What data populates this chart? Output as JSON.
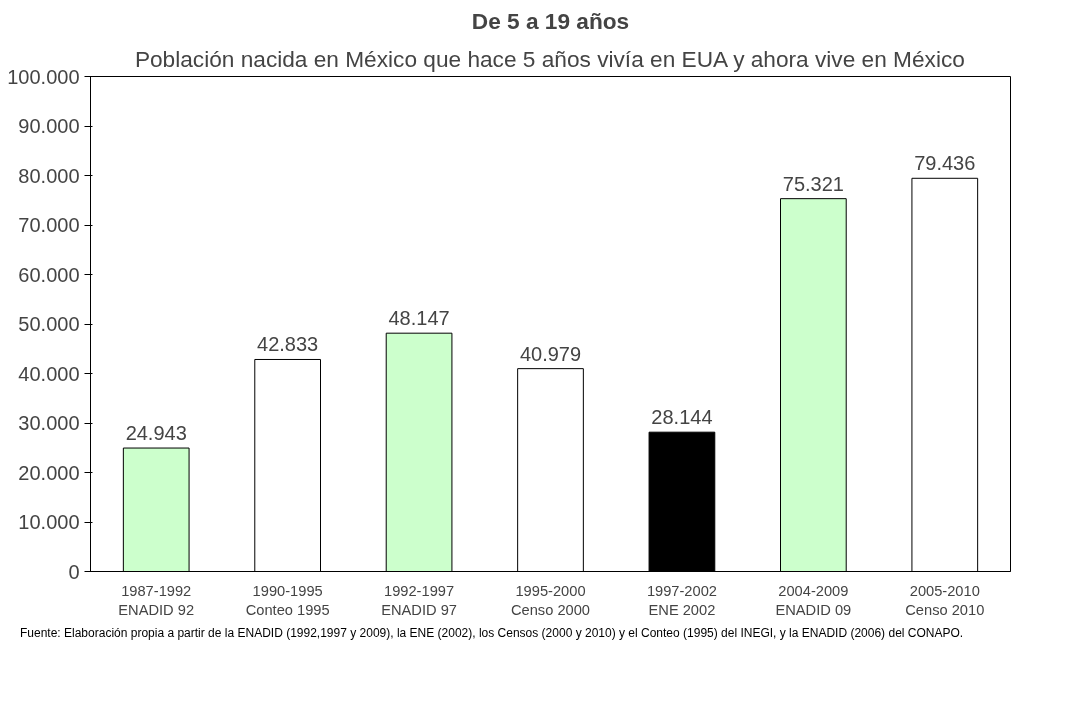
{
  "chart_data": {
    "type": "bar",
    "title": "De 5 a 19 años",
    "subtitle": "Población nacida en México que hace 5 años vivía en EUA y ahora vive en México",
    "categories": [
      "1987-1992\nENADID 92",
      "1990-1995\nConteo 1995",
      "1992-1997\nENADID 97",
      "1995-2000\nCenso 2000",
      "1997-2002\nENE 2002",
      "2004-2009\nENADID 09",
      "2005-2010\nCenso 2010"
    ],
    "values": [
      24943,
      42833,
      48147,
      40979,
      28144,
      75321,
      79436
    ],
    "colors": [
      "#ccffcc",
      "#ffffff",
      "#ccffcc",
      "#ffffff",
      "#000000",
      "#ccffcc",
      "#ffffff"
    ],
    "value_labels": [
      "24.943",
      "42.833",
      "48.147",
      "40.979",
      "28.144",
      "75.321",
      "79.436"
    ],
    "ylim": [
      0,
      100000
    ],
    "yticks": [
      0,
      {
        "value": 10000,
        "label": "10.000"
      },
      {
        "value": 20000,
        "label": "20.000"
      },
      {
        "value": 30000,
        "label": "30.000"
      },
      {
        "value": 40000,
        "label": "40.000"
      },
      {
        "value": 50000,
        "label": "50.000"
      },
      {
        "value": 60000,
        "label": "60.000"
      },
      {
        "value": 70000,
        "label": "70.000"
      },
      {
        "value": 80000,
        "label": "80.000"
      },
      {
        "value": 90000,
        "label": "90.000"
      },
      {
        "value": 100000,
        "label": "100.000"
      }
    ],
    "grid": false,
    "annotations": [
      "Fuente: Elaboración propia a partir de la ENADID (1992,1997 y 2009), la ENE (2002), los Censos (2000 y 2010) y el Conteo (1995) del INEGI, y la ENADID (2006) del CONAPO."
    ]
  }
}
